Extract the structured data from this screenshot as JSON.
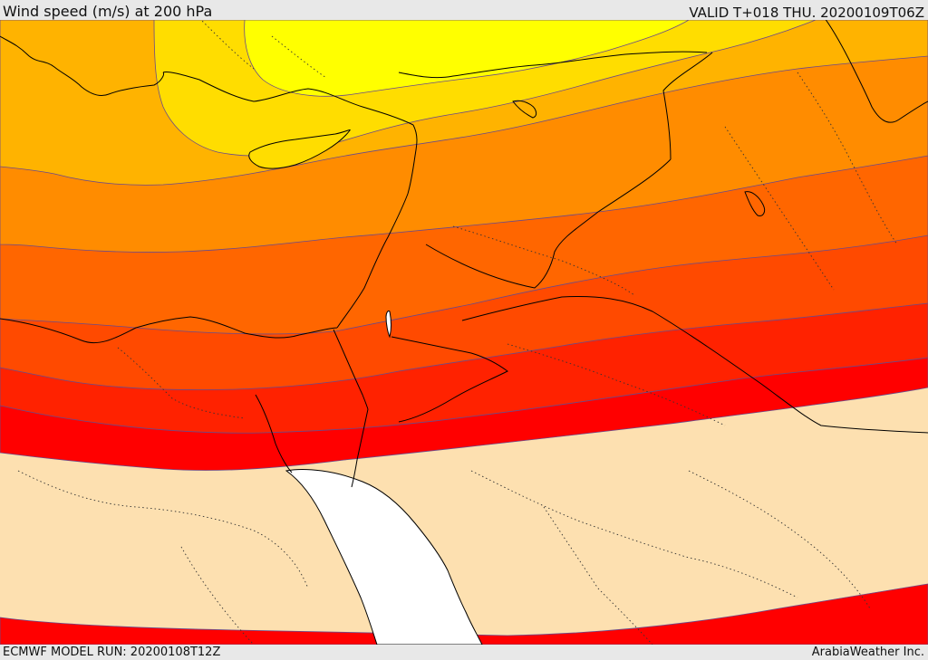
{
  "header": {
    "title": "Wind speed (m/s) at 200 hPa",
    "valid_time": "VALID T+018 THU. 20200109T06Z"
  },
  "footer": {
    "model_run": "ECMWF MODEL RUN: 20200108T12Z",
    "credit": "ArabiaWeather Inc."
  },
  "map": {
    "parameter": "wind speed",
    "level": "200 hPa",
    "units": "m/s",
    "band_colors": [
      "#ffff00",
      "#ffdd00",
      "#ffb300",
      "#ff8c00",
      "#ff6600",
      "#ff4a00",
      "#ff2200",
      "#ff0000",
      "#fde0b0"
    ],
    "sea_color": "#ffffff",
    "coastline_color": "#000000",
    "contour_color": "#6a4a8a"
  }
}
